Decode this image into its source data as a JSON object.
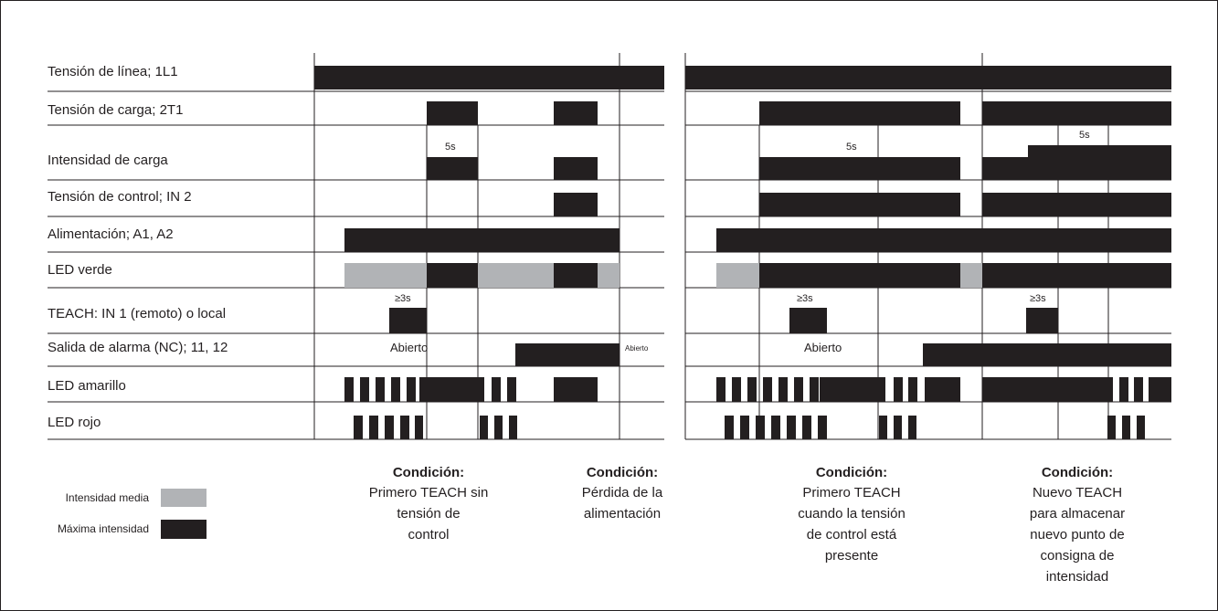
{
  "rows": [
    {
      "id": "linea",
      "label": "Tensión de línea; 1L1"
    },
    {
      "id": "carga",
      "label": "Tensión de carga; 2T1"
    },
    {
      "id": "intensidad",
      "label": "Intensidad de carga"
    },
    {
      "id": "control",
      "label": "Tensión de control; IN 2"
    },
    {
      "id": "alimentacion",
      "label": "Alimentación; A1, A2"
    },
    {
      "id": "led_verde",
      "label": "LED verde"
    },
    {
      "id": "teach",
      "label": "TEACH: IN 1 (remoto) o local"
    },
    {
      "id": "alarma",
      "label": "Salida de alarma (NC); 11, 12"
    },
    {
      "id": "led_amarillo",
      "label": "LED amarillo"
    },
    {
      "id": "led_rojo",
      "label": "LED rojo"
    }
  ],
  "annotations": {
    "five_s": "5s",
    "min_3s": "≥3s",
    "abierto": "Abierto"
  },
  "conditions": [
    {
      "title": "Condición:",
      "lines": [
        "Primero TEACH sin",
        "tensión de",
        "control"
      ]
    },
    {
      "title": "Condición:",
      "lines": [
        "Pérdida de la",
        "alimentación"
      ]
    },
    {
      "title": "Condición:",
      "lines": [
        "Primero TEACH",
        "cuando la tensión",
        "de control está",
        "presente"
      ]
    },
    {
      "title": "Condición:",
      "lines": [
        "Nuevo TEACH",
        "para almacenar",
        "nuevo punto de",
        "consigna de",
        "intensidad"
      ]
    }
  ],
  "legend": {
    "medium": {
      "label": "Intensidad media",
      "color": "#b1b3b6"
    },
    "max": {
      "label": "Máxima intensidad",
      "color": "#231f20"
    }
  },
  "colors": {
    "line": "#231f20",
    "medium": "#b1b3b6",
    "max": "#231f20",
    "background": "#ffffff"
  }
}
